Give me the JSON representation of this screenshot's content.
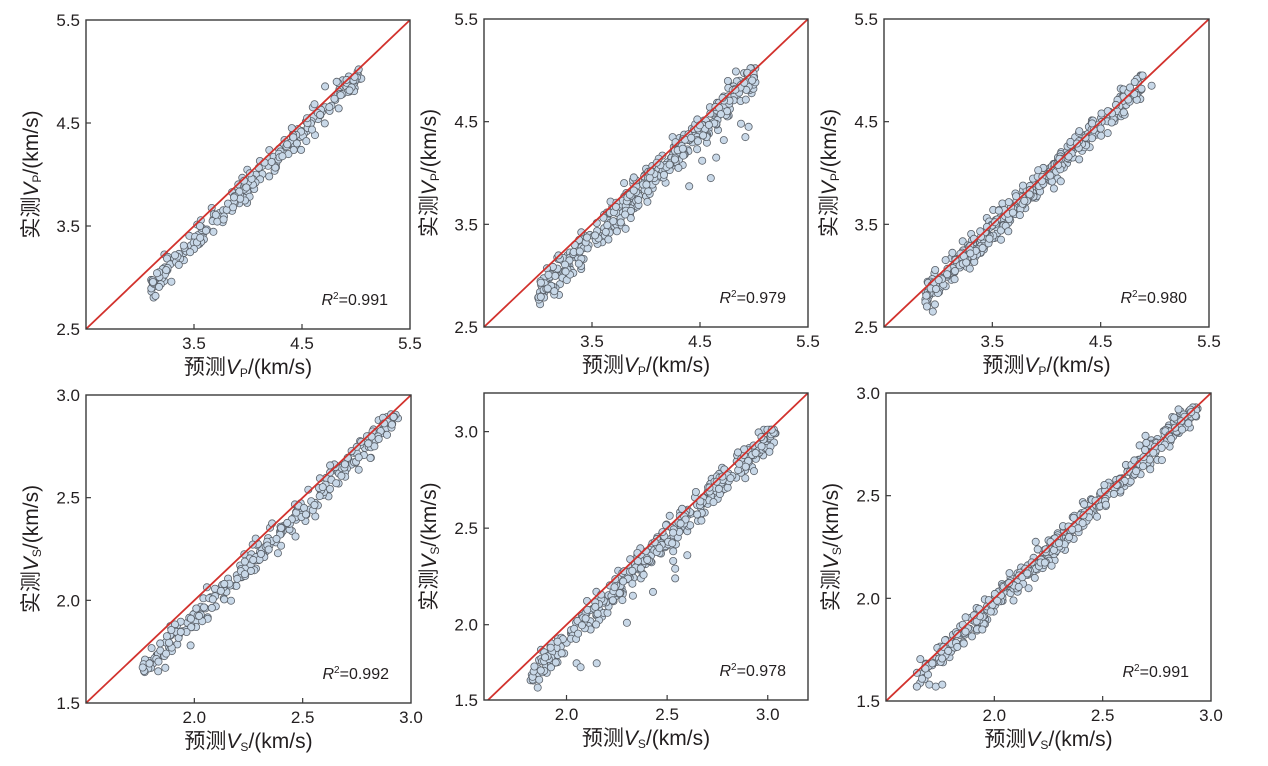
{
  "chart_data": [
    {
      "type": "scatter",
      "panel": "top-left",
      "xlabel_cn": "预测",
      "xlabel_var": "V",
      "xlabel_sub": "P",
      "xlabel_unit": "/(km/s)",
      "ylabel_cn": "实测",
      "ylabel_var": "V",
      "ylabel_sub": "P",
      "ylabel_unit": "/(km/s)",
      "xlim": [
        2.5,
        5.5
      ],
      "ylim": [
        2.5,
        5.5
      ],
      "xticks": [
        "3.5",
        "4.5",
        "5.5"
      ],
      "xtick_values": [
        3.5,
        4.5,
        5.5
      ],
      "yticks": [
        "2.5",
        "3.5",
        "4.5",
        "5.5"
      ],
      "ytick_values": [
        2.5,
        3.5,
        4.5,
        5.5
      ],
      "reference_line": "y = x",
      "annotation": {
        "r_label": "R",
        "sup": "2",
        "value": "=0.991"
      },
      "point_spread": {
        "x_range": [
          3.1,
          5.05
        ],
        "y_range": [
          2.75,
          5.02
        ],
        "bias": -0.12,
        "noise": 0.07,
        "count": 260
      }
    },
    {
      "type": "scatter",
      "panel": "top-middle",
      "xlabel_cn": "预测",
      "xlabel_var": "V",
      "xlabel_sub": "P",
      "xlabel_unit": "/(km/s)",
      "ylabel_cn": "实测",
      "ylabel_var": "V",
      "ylabel_sub": "P",
      "ylabel_unit": "/(km/s)",
      "xlim": [
        2.5,
        5.5
      ],
      "ylim": [
        2.5,
        5.5
      ],
      "xticks": [
        "3.5",
        "4.5",
        "5.5"
      ],
      "xtick_values": [
        3.5,
        4.5,
        5.5
      ],
      "yticks": [
        "2.5",
        "3.5",
        "4.5",
        "5.5"
      ],
      "ytick_values": [
        2.5,
        3.5,
        4.5,
        5.5
      ],
      "reference_line": "y = x",
      "annotation": {
        "r_label": "R",
        "sup": "2",
        "value": "=0.979"
      },
      "point_spread": {
        "x_range": [
          3.0,
          5.02
        ],
        "y_range": [
          2.7,
          5.02
        ],
        "bias": -0.13,
        "noise": 0.08,
        "count": 420
      },
      "outliers": [
        [
          4.4,
          3.87
        ],
        [
          4.6,
          3.95
        ],
        [
          4.65,
          4.15
        ],
        [
          4.52,
          4.12
        ],
        [
          4.92,
          4.35
        ],
        [
          4.95,
          4.45
        ],
        [
          4.88,
          4.48
        ],
        [
          4.3,
          4.05
        ],
        [
          4.72,
          4.32
        ]
      ]
    },
    {
      "type": "scatter",
      "panel": "top-right",
      "xlabel_cn": "预测",
      "xlabel_var": "V",
      "xlabel_sub": "P",
      "xlabel_unit": "/(km/s)",
      "ylabel_cn": "实测",
      "ylabel_var": "V",
      "ylabel_sub": "P",
      "ylabel_unit": "/(km/s)",
      "xlim": [
        2.5,
        5.5
      ],
      "ylim": [
        2.5,
        5.5
      ],
      "xticks": [
        "3.5",
        "4.5",
        "5.5"
      ],
      "xtick_values": [
        3.5,
        4.5,
        5.5
      ],
      "yticks": [
        "2.5",
        "3.5",
        "4.5",
        "5.5"
      ],
      "ytick_values": [
        2.5,
        3.5,
        4.5,
        5.5
      ],
      "reference_line": "y = x",
      "annotation": {
        "r_label": "R",
        "sup": "2",
        "value": "=0.980"
      },
      "point_spread": {
        "x_range": [
          2.88,
          4.9
        ],
        "y_range": [
          2.65,
          4.95
        ],
        "bias": -0.05,
        "noise": 0.07,
        "count": 420
      },
      "outliers": [
        [
          2.95,
          2.65
        ],
        [
          2.97,
          2.72
        ],
        [
          4.97,
          4.85
        ],
        [
          3.58,
          3.35
        ]
      ]
    },
    {
      "type": "scatter",
      "panel": "bottom-left",
      "xlabel_cn": "预测",
      "xlabel_var": "V",
      "xlabel_sub": "S",
      "xlabel_unit": "/(km/s)",
      "ylabel_cn": "实测",
      "ylabel_var": "V",
      "ylabel_sub": "S",
      "ylabel_unit": "/(km/s)",
      "xlim": [
        1.5,
        3.0
      ],
      "ylim": [
        1.5,
        3.0
      ],
      "xticks": [
        "2.0",
        "2.5",
        "3.0"
      ],
      "xtick_values": [
        2.0,
        2.5,
        3.0
      ],
      "yticks": [
        "1.5",
        "2.0",
        "2.5",
        "3.0"
      ],
      "ytick_values": [
        1.5,
        2.0,
        2.5,
        3.0
      ],
      "reference_line": "y = x",
      "annotation": {
        "r_label": "R",
        "sup": "2",
        "value": "=0.992"
      },
      "point_spread": {
        "x_range": [
          1.76,
          2.94
        ],
        "y_range": [
          1.54,
          2.92
        ],
        "bias": -0.08,
        "noise": 0.035,
        "count": 300
      }
    },
    {
      "type": "scatter",
      "panel": "bottom-middle",
      "xlabel_cn": "预测",
      "xlabel_var": "V",
      "xlabel_sub": "S",
      "xlabel_unit": "/(km/s)",
      "ylabel_cn": "实测",
      "ylabel_var": "V",
      "ylabel_sub": "S",
      "ylabel_unit": "/(km/s)",
      "xlim": [
        1.59,
        3.2
      ],
      "ylim": [
        1.61,
        3.2
      ],
      "xticks": [
        "2.0",
        "2.5",
        "3.0"
      ],
      "xtick_values": [
        2.0,
        2.5,
        3.0
      ],
      "yticks": [
        "2.0",
        "2.5",
        "3.0"
      ],
      "ytick_values": [
        2.0,
        2.5,
        3.0
      ],
      "corner_ylabel": "1.5",
      "reference_line": "y = x",
      "annotation": {
        "r_label": "R",
        "sup": "2",
        "value": "=0.978"
      },
      "point_spread": {
        "x_range": [
          1.82,
          3.04
        ],
        "y_range": [
          1.6,
          3.01
        ],
        "bias": -0.06,
        "noise": 0.04,
        "count": 420
      },
      "outliers": [
        [
          2.3,
          2.01
        ],
        [
          2.05,
          1.8
        ],
        [
          2.07,
          1.78
        ],
        [
          2.15,
          1.8
        ],
        [
          2.43,
          2.17
        ],
        [
          2.54,
          2.24
        ],
        [
          2.54,
          2.29
        ],
        [
          2.6,
          2.36
        ],
        [
          2.53,
          2.33
        ],
        [
          2.53,
          2.38
        ],
        [
          2.33,
          2.15
        ]
      ]
    },
    {
      "type": "scatter",
      "panel": "bottom-right",
      "xlabel_cn": "预测",
      "xlabel_var": "V",
      "xlabel_sub": "S",
      "xlabel_unit": "/(km/s)",
      "ylabel_cn": "实测",
      "ylabel_var": "V",
      "ylabel_sub": "S",
      "ylabel_unit": "/(km/s)",
      "xlim": [
        1.5,
        3.0
      ],
      "ylim": [
        1.5,
        3.0
      ],
      "xticks": [
        "2.0",
        "2.5",
        "3.0"
      ],
      "xtick_values": [
        2.0,
        2.5,
        3.0
      ],
      "yticks": [
        "1.5",
        "2.0",
        "2.5",
        "3.0"
      ],
      "ytick_values": [
        1.5,
        2.0,
        2.5,
        3.0
      ],
      "reference_line": "y = x",
      "annotation": {
        "r_label": "R",
        "sup": "2",
        "value": "=0.991"
      },
      "point_spread": {
        "x_range": [
          1.64,
          2.94
        ],
        "y_range": [
          1.57,
          2.93
        ],
        "bias": -0.02,
        "noise": 0.035,
        "count": 460
      },
      "outliers": [
        [
          1.7,
          1.58
        ],
        [
          1.73,
          1.57
        ],
        [
          1.76,
          1.58
        ],
        [
          2.85,
          2.92
        ],
        [
          2.83,
          2.88
        ]
      ]
    }
  ],
  "colors": {
    "marker_fill": "#c8d8e8",
    "marker_edge": "#5a6068",
    "reference_line": "#d2322d",
    "frame": "#3a3a3a",
    "text": "#231f20"
  }
}
